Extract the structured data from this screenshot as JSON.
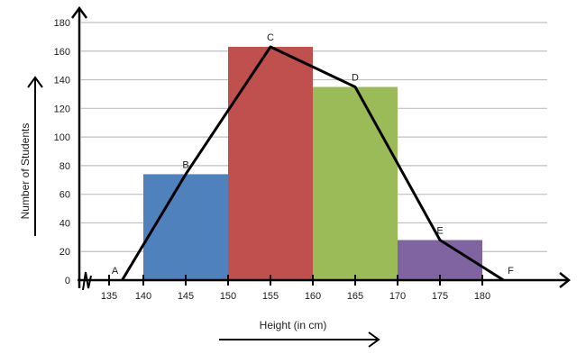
{
  "chart_data": {
    "type": "bar",
    "title": "",
    "xlabel": "Height (in cm)",
    "ylabel": "Number of Students",
    "ylim": [
      0,
      180
    ],
    "yticks": [
      0,
      20,
      40,
      60,
      80,
      100,
      120,
      140,
      160,
      180
    ],
    "xticks": [
      135,
      140,
      145,
      150,
      155,
      160,
      165,
      170,
      175,
      180
    ],
    "grid": true,
    "bars": [
      {
        "from": 140,
        "to": 150,
        "value": 74,
        "color": "#4f81bd"
      },
      {
        "from": 150,
        "to": 160,
        "value": 163,
        "color": "#c0504d"
      },
      {
        "from": 160,
        "to": 170,
        "value": 135,
        "color": "#9bbb59"
      },
      {
        "from": 170,
        "to": 180,
        "value": 28,
        "color": "#8064a2"
      }
    ],
    "polygon": [
      {
        "label": "A",
        "x": 137.5,
        "y": 0
      },
      {
        "label": "B",
        "x": 145,
        "y": 74
      },
      {
        "label": "C",
        "x": 155,
        "y": 163
      },
      {
        "label": "D",
        "x": 165,
        "y": 135
      },
      {
        "label": "E",
        "x": 175,
        "y": 28
      },
      {
        "label": "F",
        "x": 182.5,
        "y": 0
      }
    ]
  }
}
